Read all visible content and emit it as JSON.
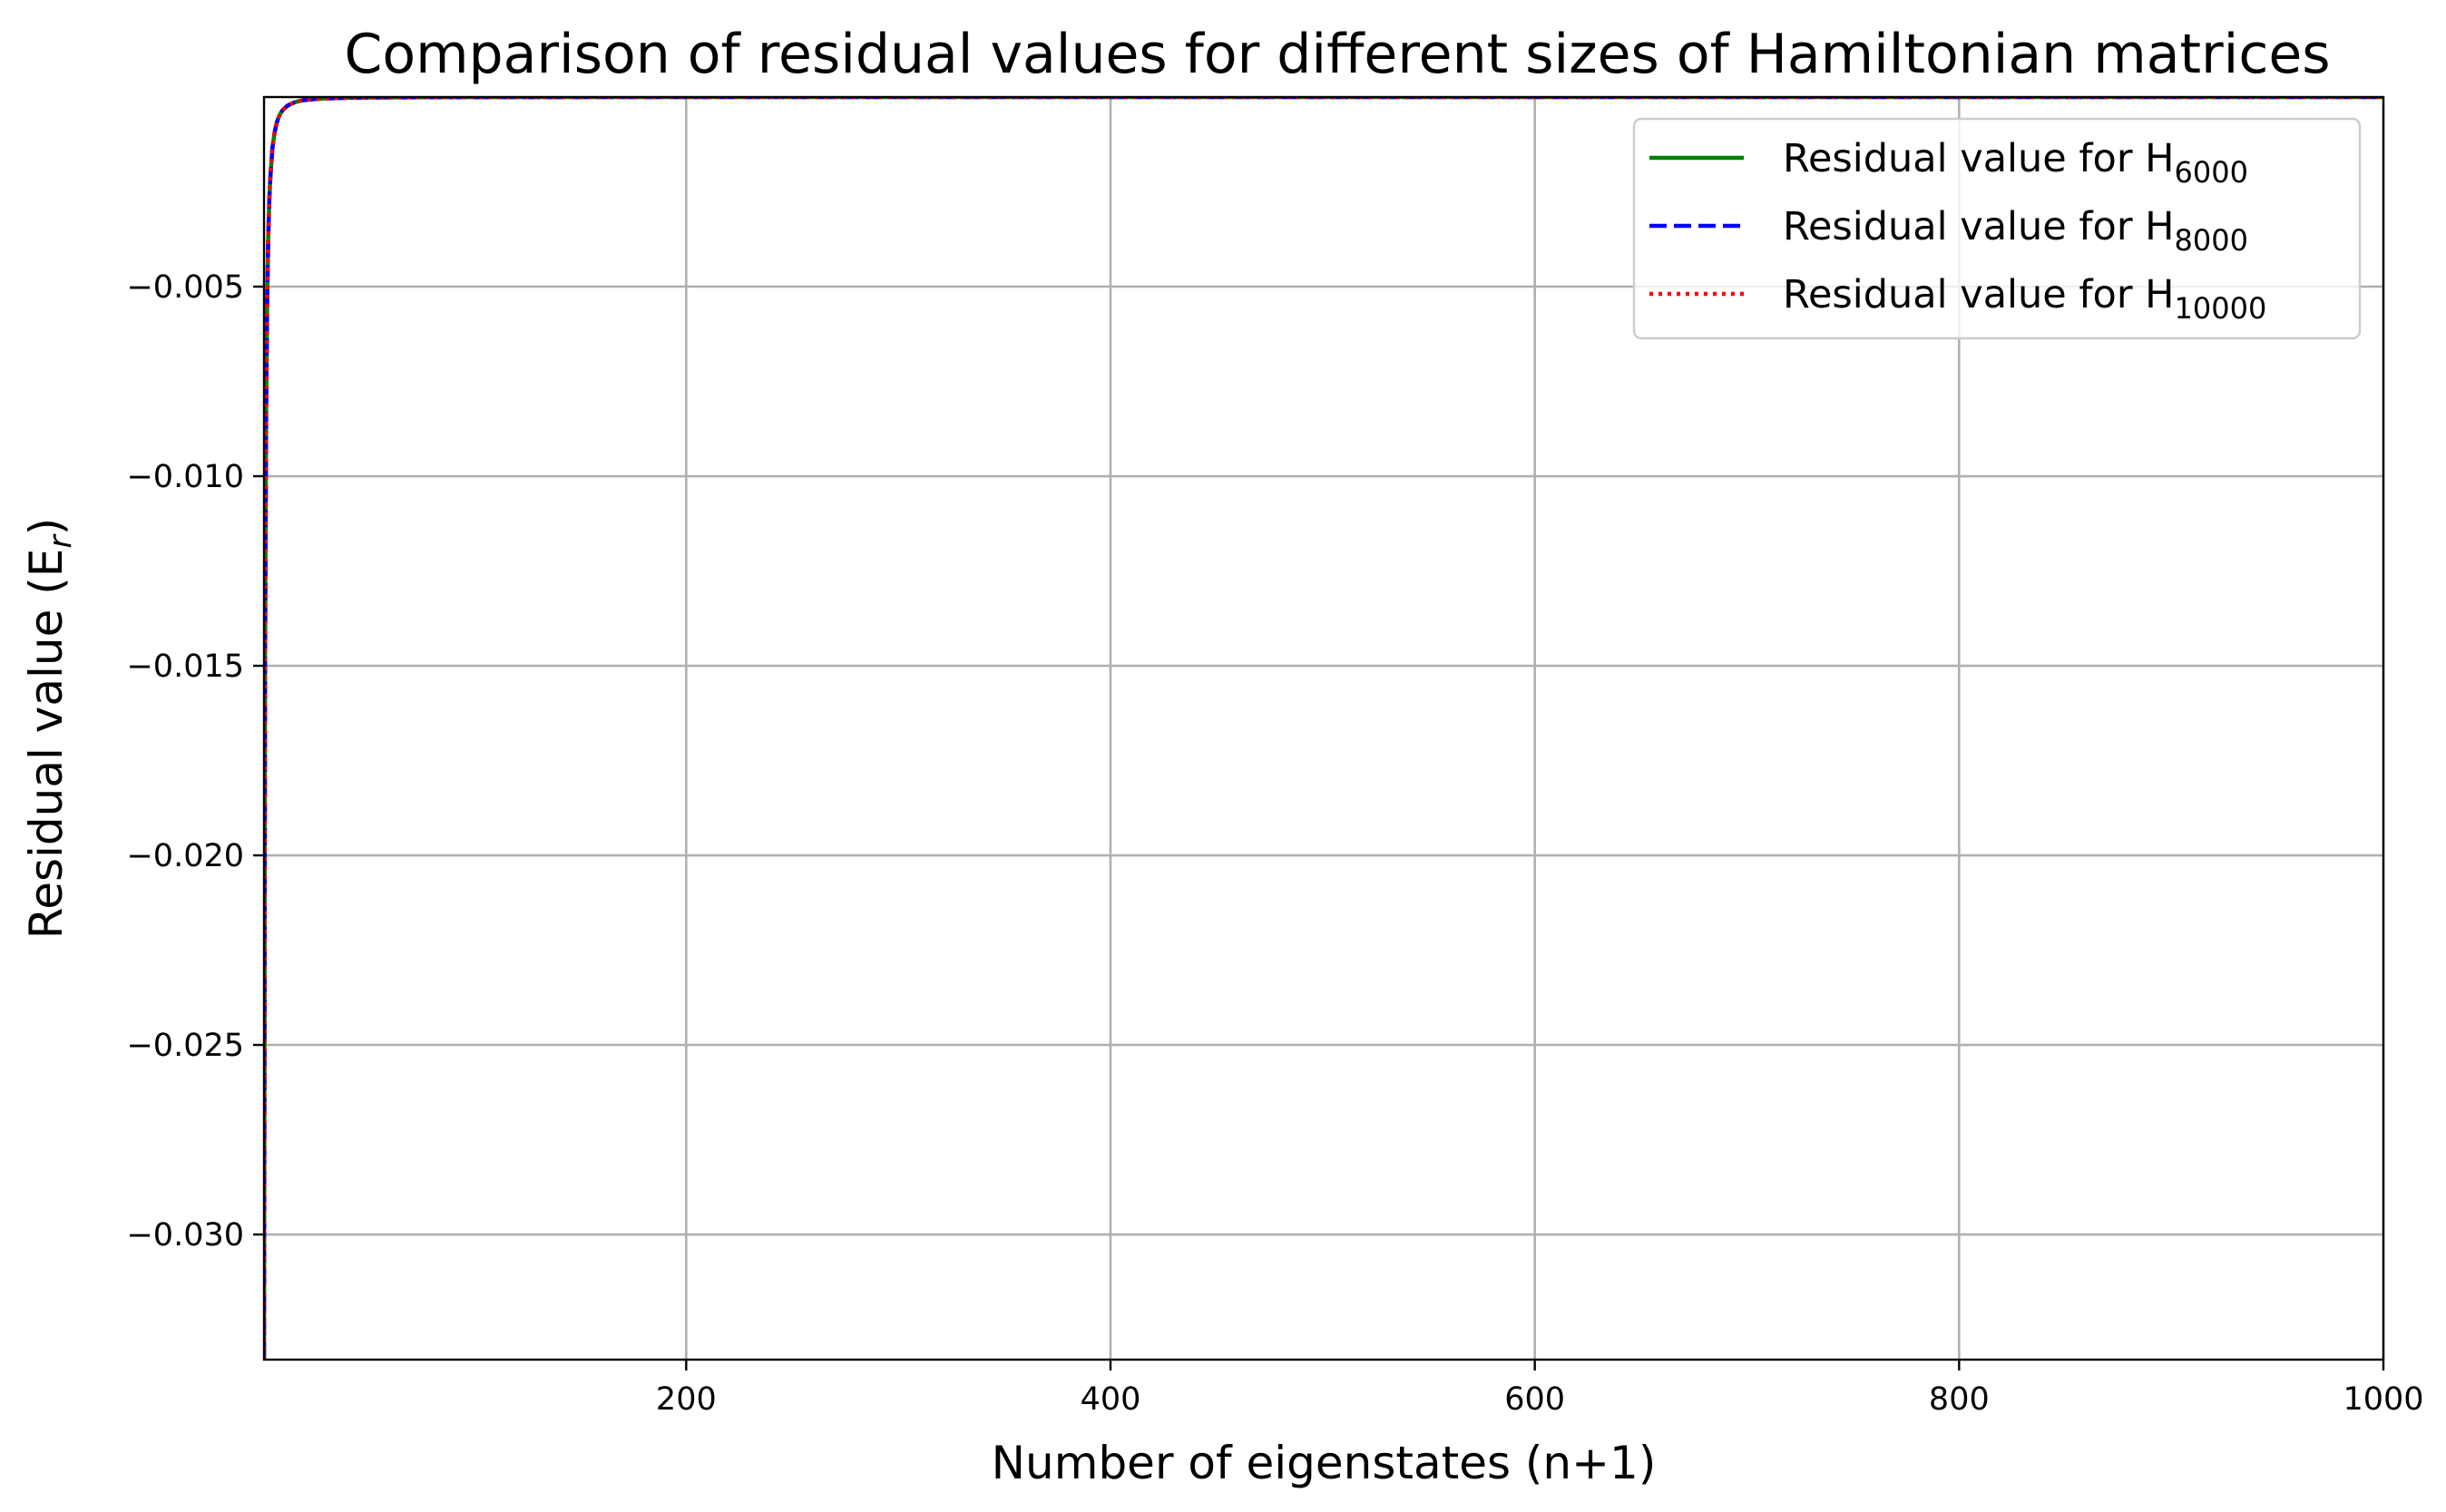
{
  "chart_data": {
    "type": "line",
    "title": "Comparison of residual values for different sizes of Hamiltonian matrices",
    "xlabel": {
      "text": "Number of eigenstates (n+1)"
    },
    "ylabel": {
      "text": "Residual value (E",
      "sub": "r",
      "suffix": ")"
    },
    "xlim": [
      1,
      1000
    ],
    "ylim": [
      -0.0333,
      0.0
    ],
    "xticks": [
      200,
      400,
      600,
      800,
      1000
    ],
    "xtick_labels": [
      "200",
      "400",
      "600",
      "800",
      "1000"
    ],
    "yticks": [
      -0.005,
      -0.01,
      -0.015,
      -0.02,
      -0.025,
      -0.03
    ],
    "ytick_labels": [
      "−0.005",
      "−0.010",
      "−0.015",
      "−0.020",
      "−0.025",
      "−0.030"
    ],
    "grid": true,
    "legend_position": "top-right",
    "x": [
      1,
      1.5,
      2,
      2.5,
      3,
      3.5,
      4,
      5,
      6,
      7,
      8,
      9,
      10,
      12,
      14,
      16,
      18,
      20,
      25,
      30,
      40,
      50,
      60,
      80,
      100,
      150,
      200,
      300,
      400,
      500,
      600,
      700,
      800,
      900,
      1000
    ],
    "series": [
      {
        "name": "Residual value for H",
        "sub": "6000",
        "color": "#008000",
        "dash": "solid",
        "values": [
          -0.0333,
          -0.0148,
          -0.0083,
          -0.0053,
          -0.0037,
          -0.0027,
          -0.0021,
          -0.00133,
          -0.00093,
          -0.00068,
          -0.00052,
          -0.00041,
          -0.00033,
          -0.00023,
          -0.00017,
          -0.00013,
          -0.0001,
          -8e-05,
          -5e-05,
          -3.7e-05,
          -2.1e-05,
          -1.3e-05,
          -9.3e-06,
          -5.2e-06,
          -3.3e-06,
          -1.5e-06,
          -8e-07,
          -4e-07,
          -2e-07,
          -1.3e-07,
          -9e-08,
          -7e-08,
          -5e-08,
          -4e-08,
          -3e-08
        ]
      },
      {
        "name": "Residual value for H",
        "sub": "8000",
        "color": "#0000ff",
        "dash": "dashed",
        "values": [
          -0.0333,
          -0.0148,
          -0.0083,
          -0.0053,
          -0.0037,
          -0.0027,
          -0.0021,
          -0.00133,
          -0.00093,
          -0.00068,
          -0.00052,
          -0.00041,
          -0.00033,
          -0.00023,
          -0.00017,
          -0.00013,
          -0.0001,
          -8e-05,
          -5e-05,
          -3.7e-05,
          -2.1e-05,
          -1.3e-05,
          -9.3e-06,
          -5.2e-06,
          -3.3e-06,
          -1.5e-06,
          -8e-07,
          -4e-07,
          -2e-07,
          -1.3e-07,
          -9e-08,
          -7e-08,
          -5e-08,
          -4e-08,
          -3e-08
        ]
      },
      {
        "name": "Residual value for H",
        "sub": "10000",
        "color": "#ff0000",
        "dash": "dotted",
        "values": [
          -0.0333,
          -0.0148,
          -0.0083,
          -0.0053,
          -0.0037,
          -0.0027,
          -0.0021,
          -0.00133,
          -0.00093,
          -0.00068,
          -0.00052,
          -0.00041,
          -0.00033,
          -0.00023,
          -0.00017,
          -0.00013,
          -0.0001,
          -8e-05,
          -5e-05,
          -3.7e-05,
          -2.1e-05,
          -1.3e-05,
          -9.3e-06,
          -5.2e-06,
          -3.3e-06,
          -1.5e-06,
          -8e-07,
          -4e-07,
          -2e-07,
          -1.3e-07,
          -9e-08,
          -7e-08,
          -5e-08,
          -4e-08,
          -3e-08
        ]
      }
    ]
  }
}
